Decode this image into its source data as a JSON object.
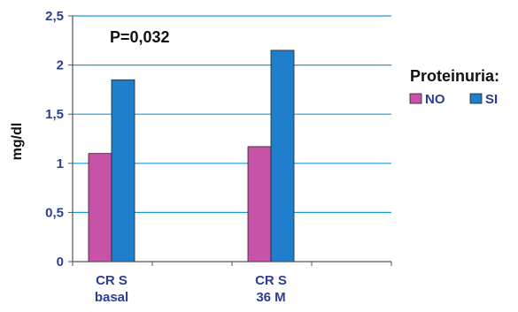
{
  "chart_data": {
    "type": "bar",
    "categories": [
      "CR S basal",
      "CR S 36 M"
    ],
    "category_lines": [
      [
        "CR S",
        "basal"
      ],
      [
        "CR S",
        "36 M"
      ]
    ],
    "series": [
      {
        "name": "NO",
        "values": [
          1.1,
          1.17
        ],
        "color": "#c653a8"
      },
      {
        "name": "SI",
        "values": [
          1.85,
          2.15
        ],
        "color": "#1f7fcc"
      }
    ],
    "ylabel": "mg/dl",
    "xlabel": "",
    "ylim": [
      0,
      2.5
    ],
    "yticks": [
      0,
      0.5,
      1,
      1.5,
      2,
      2.5
    ],
    "ytick_labels": [
      "0",
      "0,5",
      "1",
      "1,5",
      "2",
      "2,5"
    ],
    "grid": true,
    "grid_color": "#1a9ad6",
    "legend_title": "Proteinuria:",
    "legend_position": "right",
    "annotation": "P=0,032",
    "tick_label_color": "#2c3e94"
  }
}
